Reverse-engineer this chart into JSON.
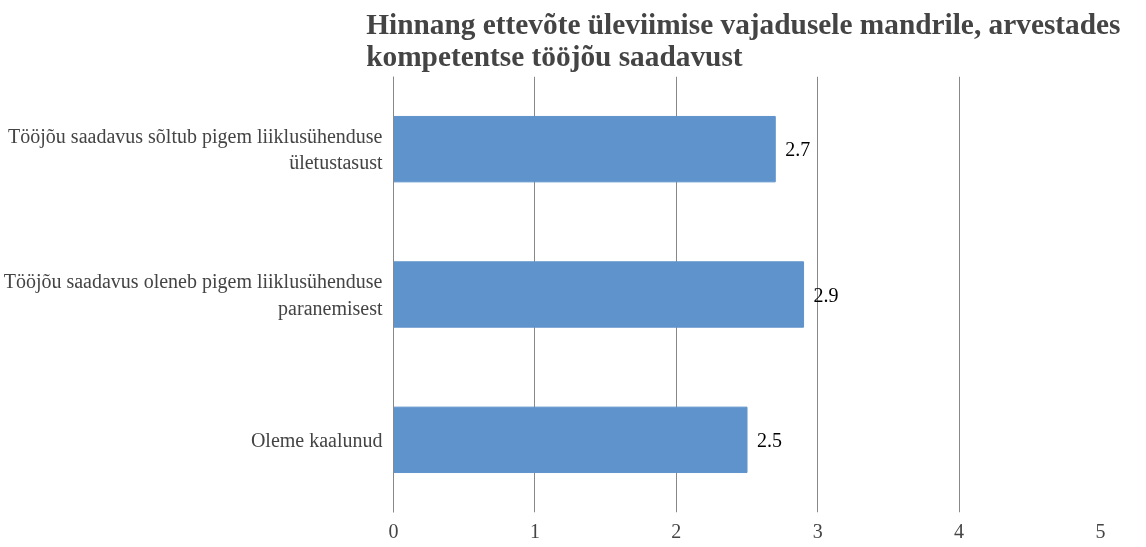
{
  "chart_data": {
    "type": "bar",
    "orientation": "horizontal",
    "title": "Hinnang ettevõte üleviimise vajadusele  mandrile, arvestades kompetentse tööjõu saadavust",
    "categories": [
      "Tööjõu saadavus sõltub pigem liiklusühenduse ületustasust",
      "Tööjõu saadavus oleneb pigem liiklusühenduse paranemisest",
      "Oleme kaalunud"
    ],
    "values": [
      2.7,
      2.9,
      2.5
    ],
    "color": "#5f93cb",
    "xlim": [
      0,
      5
    ],
    "xticks": [
      0,
      1,
      2,
      3,
      4,
      5
    ],
    "grid": "x",
    "data_labels": true
  }
}
